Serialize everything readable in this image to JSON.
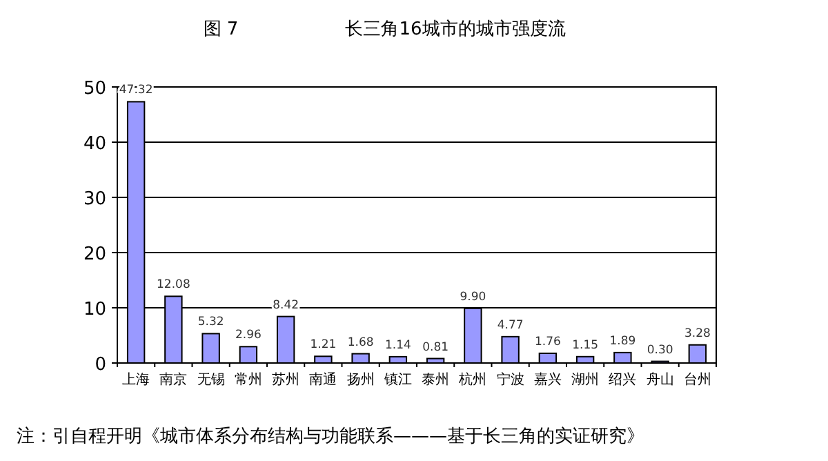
{
  "chart_data": {
    "type": "bar",
    "title": "图 7",
    "subtitle": "长三角16城市的城市强度流",
    "categories": [
      "上海",
      "南京",
      "无锡",
      "常州",
      "苏州",
      "南通",
      "扬州",
      "镇江",
      "泰州",
      "杭州",
      "宁波",
      "嘉兴",
      "湖州",
      "绍兴",
      "舟山",
      "台州"
    ],
    "values": [
      47.32,
      12.08,
      5.32,
      2.96,
      8.42,
      1.21,
      1.68,
      1.14,
      0.81,
      9.9,
      4.77,
      1.76,
      1.15,
      1.89,
      0.3,
      3.28
    ],
    "value_labels": [
      "47.32",
      "12.08",
      "5.32",
      "2.96",
      "8.42",
      "1.21",
      "1.68",
      "1.14",
      "0.81",
      "9.90",
      "4.77",
      "1.76",
      "1.15",
      "1.89",
      "0.30",
      "3.28"
    ],
    "color": "#9999ff",
    "ylim": [
      0,
      50
    ],
    "yticks": [
      0,
      10,
      20,
      30,
      40,
      50
    ],
    "grid": "y",
    "annotations": [
      "注：引自程开明《城市体系分布结构与功能联系———基于长三角的实证研究》"
    ]
  }
}
